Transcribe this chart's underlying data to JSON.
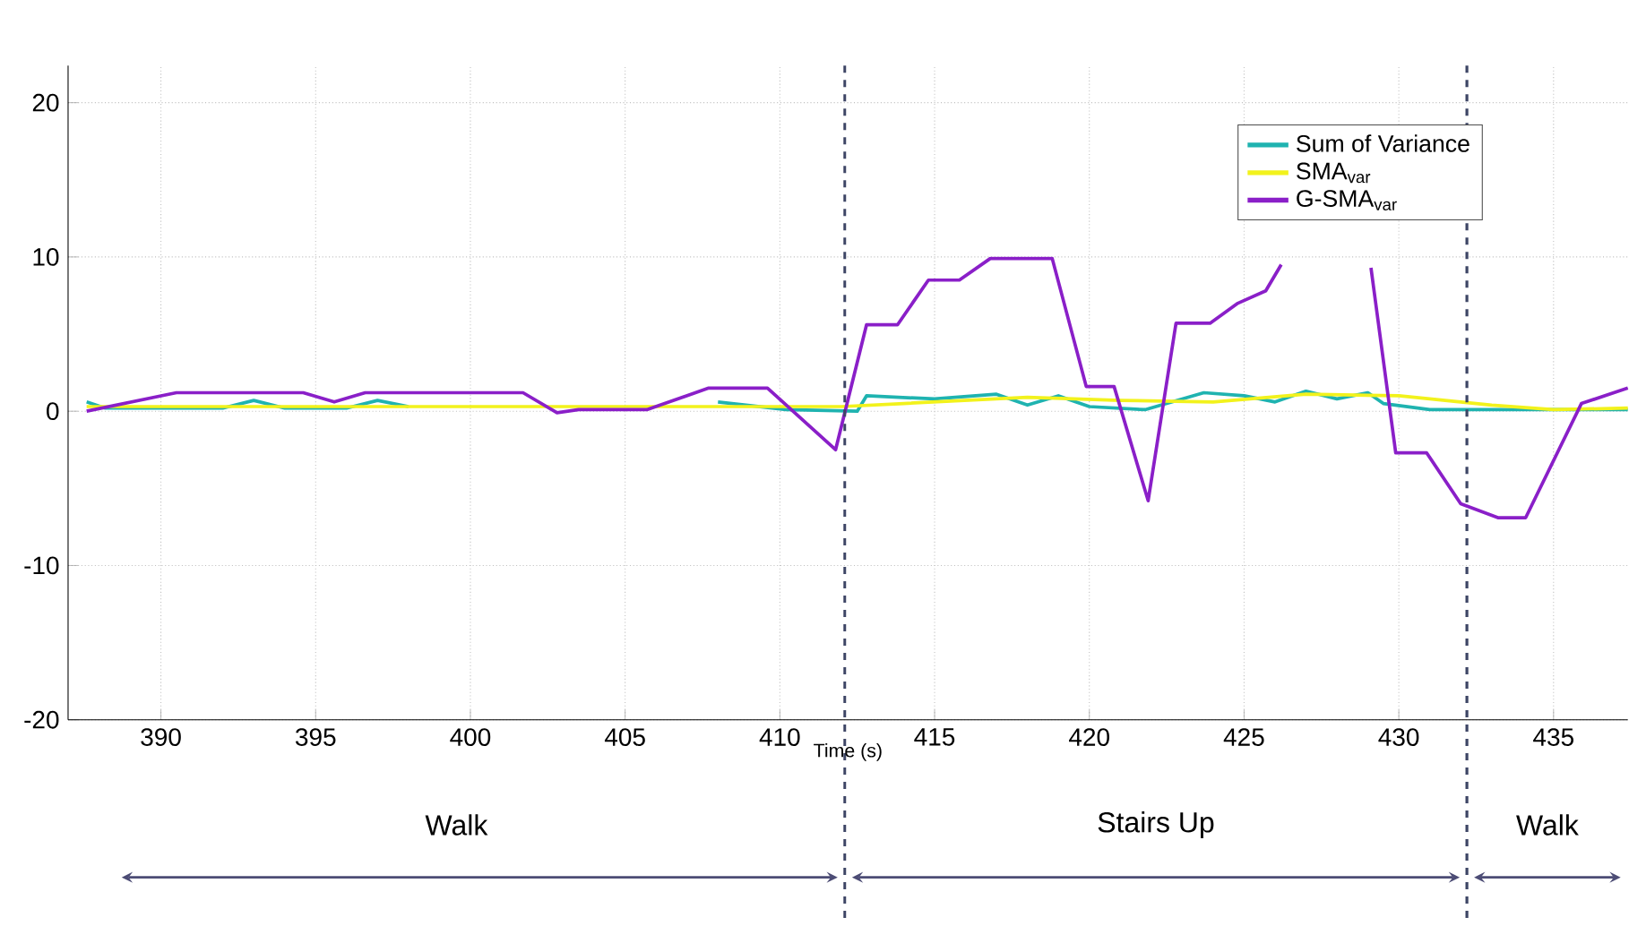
{
  "chart_data": {
    "type": "line",
    "xlabel": "Time (s)",
    "xlim": [
      387,
      437.4
    ],
    "ylim": [
      -20,
      22.4
    ],
    "xticks": [
      390,
      395,
      400,
      405,
      410,
      415,
      420,
      425,
      430,
      435
    ],
    "yticks": [
      -20,
      -10,
      0,
      10,
      20
    ],
    "grid": true,
    "legend": "top right",
    "line_style": "solid",
    "ref_lines": [
      {
        "axis": "x",
        "value": 412.1,
        "color": "#3d4565",
        "line_style": "dashed"
      },
      {
        "axis": "x",
        "value": 432.2,
        "color": "#3d4565",
        "line_style": "dashed"
      }
    ],
    "annotations": [
      "Walk",
      "Stairs Up",
      "Walk"
    ],
    "series": [
      {
        "name": "Sum of Variance",
        "color": "#1fb3b0",
        "x": [
          387.6,
          388.2,
          392,
          393,
          394,
          396,
          397,
          398,
          402,
          406,
          408,
          410.2,
          412.5,
          412.8,
          415,
          417,
          418,
          419,
          420,
          421.8,
          423.7,
          425,
          426,
          427,
          428,
          429,
          429.5,
          431,
          434,
          437.4
        ],
        "values": [
          0.6,
          0.2,
          0.2,
          0.7,
          0.2,
          0.2,
          0.7,
          0.3,
          null,
          null,
          0.6,
          0.1,
          0.0,
          1.0,
          0.8,
          1.1,
          0.4,
          1.0,
          0.3,
          0.1,
          1.2,
          1.0,
          0.6,
          1.3,
          0.8,
          1.2,
          0.5,
          0.1,
          0.1,
          0.1
        ]
      },
      {
        "name": "SMA$_{var}$",
        "color": "#f2f21c",
        "x": [
          387.6,
          400,
          412,
          414,
          418,
          421,
          424,
          427,
          430,
          433,
          435,
          437.4
        ],
        "values": [
          0.3,
          0.3,
          0.3,
          0.5,
          0.9,
          0.7,
          0.6,
          1.1,
          1.0,
          0.4,
          0.1,
          0.2
        ]
      },
      {
        "name": "G-SMA$_{var}$",
        "color": "#8a1fc8",
        "x": [
          387.6,
          390.5,
          394.6,
          395.6,
          396.6,
          401.7,
          402.8,
          403.5,
          405.7,
          407.7,
          409.6,
          411.8,
          412.8,
          413.8,
          414.8,
          415.8,
          416.8,
          418.8,
          419.9,
          420.8,
          421.9,
          422.8,
          423.9,
          424.8,
          425.7,
          426.2,
          427.5,
          429.1,
          429.9,
          430.9,
          432.0,
          433.2,
          434.1,
          435.9,
          437.4
        ],
        "values": [
          0.0,
          1.2,
          1.2,
          0.6,
          1.2,
          1.2,
          -0.1,
          0.1,
          0.1,
          1.5,
          1.5,
          -2.5,
          5.6,
          5.6,
          8.5,
          8.5,
          9.9,
          9.9,
          1.6,
          1.6,
          -5.8,
          5.7,
          5.7,
          7.0,
          7.8,
          9.5,
          null,
          9.3,
          -2.7,
          -2.7,
          -6.0,
          -6.9,
          -6.9,
          0.5,
          1.5
        ]
      }
    ]
  }
}
